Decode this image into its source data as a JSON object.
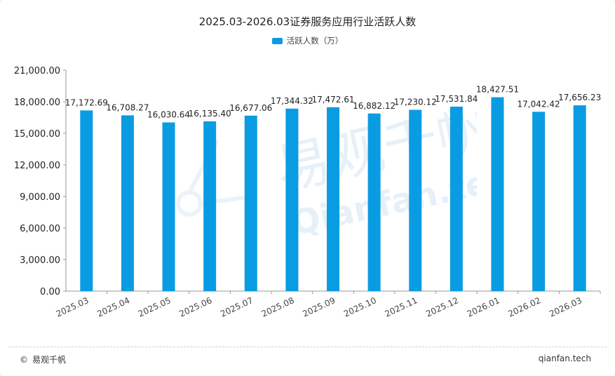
{
  "chart_data": {
    "type": "bar",
    "title": "2025.03-2026.03证券服务应用行业活跃人数",
    "legend": [
      "活跃人数（万）"
    ],
    "categories": [
      "2025.03",
      "2025.04",
      "2025.05",
      "2025.06",
      "2025.07",
      "2025.08",
      "2025.09",
      "2025.10",
      "2025.11",
      "2025.12",
      "2026.01",
      "2026.02",
      "2026.03"
    ],
    "values": [
      17172.69,
      16708.27,
      16030.64,
      16135.4,
      16677.06,
      17344.32,
      17472.61,
      16882.12,
      17230.12,
      17531.84,
      18427.51,
      17042.42,
      17656.23
    ],
    "value_labels": [
      "17,172.69",
      "16,708.27",
      "16,030.64",
      "16,135.40",
      "16,677.06",
      "17,344.32",
      "17,472.61",
      "16,882.12",
      "17,230.12",
      "17,531.84",
      "18,427.51",
      "17,042.42",
      "17,656.23"
    ],
    "yticks": [
      0,
      3000,
      6000,
      9000,
      12000,
      15000,
      18000,
      21000
    ],
    "ytick_labels": [
      "0.00",
      "3,000.00",
      "6,000.00",
      "9,000.00",
      "12,000.00",
      "15,000.00",
      "18,000.00",
      "21,000.00"
    ],
    "ylim": [
      0,
      21000
    ],
    "xlabel": "",
    "ylabel": "",
    "legend_position": "top-center",
    "bar_color": "#0a9ce2"
  },
  "footer": {
    "copyright_symbol": "©",
    "brand": "易观千帆",
    "site": "qianfan.tech"
  }
}
